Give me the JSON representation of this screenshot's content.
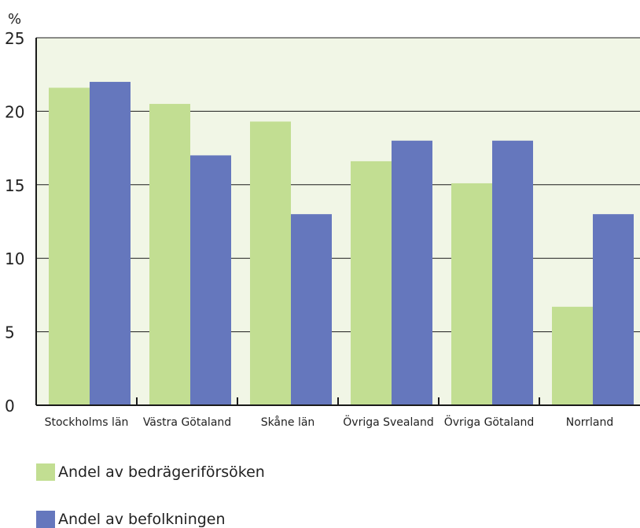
{
  "chart_data": {
    "type": "bar",
    "ylabel": "%",
    "ylim": [
      0,
      25
    ],
    "yticks": [
      0,
      5,
      10,
      15,
      20,
      25
    ],
    "grid": true,
    "legend_position": "bottom-left",
    "categories": [
      "Stockholms län",
      "Västra Götaland",
      "Skåne län",
      "Övriga Svealand",
      "Övriga Götaland",
      "Norrland"
    ],
    "series": [
      {
        "name": "Andel av bedrägeriförsöken",
        "color": "#c2de92",
        "values": [
          21.6,
          20.5,
          19.3,
          16.6,
          15.1,
          6.7
        ]
      },
      {
        "name": "Andel av befolkningen",
        "color": "#6577bd",
        "values": [
          22.0,
          17.0,
          13.0,
          18.0,
          18.0,
          13.0
        ]
      }
    ],
    "plot_background": "#f1f6e6"
  }
}
